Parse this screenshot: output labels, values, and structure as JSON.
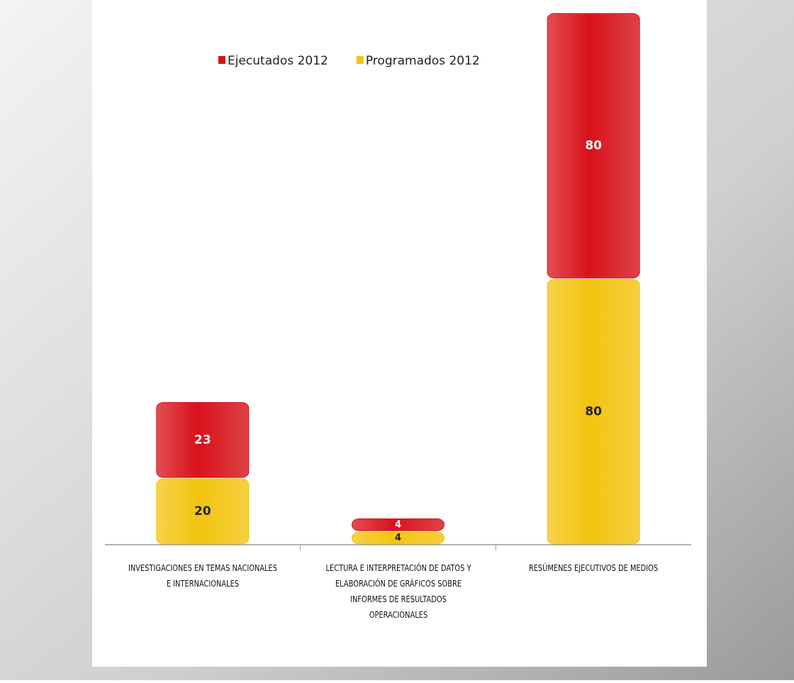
{
  "chart_data": {
    "type": "stacked-bar",
    "categories": [
      "INVESTIGACIONES EN TEMAS NACIONALES E INTERNACIONALES",
      "LECTURA E INTERPRETACIÓN DE DATOS Y ELABORACIÓN DE GRÁFICOS SOBRE INFORMES DE RESULTADOS OPERACIONALES",
      "RESÚMENES EJECUTIVOS DE MEDIOS"
    ],
    "series": [
      {
        "name": "Programados 2012",
        "color": "#f2c40f",
        "values": [
          20,
          4,
          80
        ]
      },
      {
        "name": "Ejecutados 2012",
        "color": "#d8121a",
        "values": [
          23,
          4,
          80
        ]
      }
    ],
    "legend_order": [
      1,
      0
    ]
  }
}
